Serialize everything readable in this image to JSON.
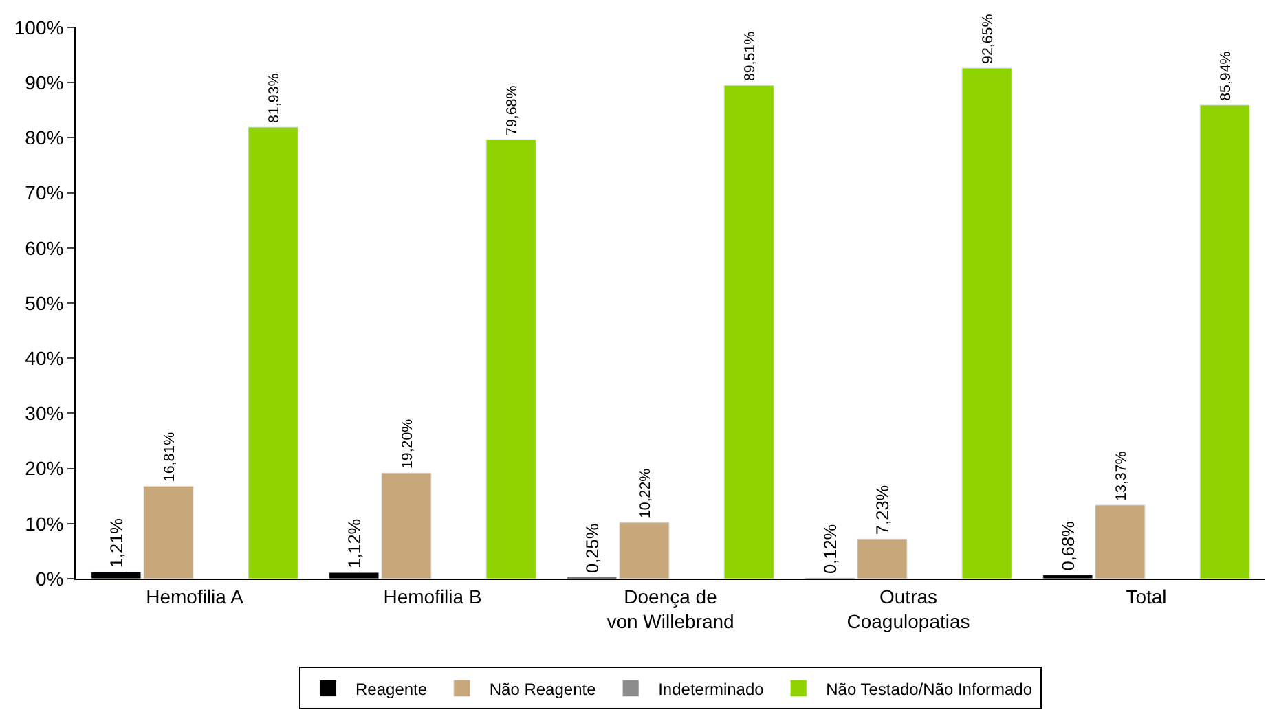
{
  "chart_data": {
    "type": "bar",
    "categories": [
      "Hemofilia A",
      "Hemofilia B",
      "Doença de\nvon Willebrand",
      "Outras\nCoagulopatias",
      "Total"
    ],
    "series": [
      {
        "name": "Reagente",
        "color": "#000000",
        "values": [
          1.21,
          1.12,
          0.25,
          0.12,
          0.68
        ],
        "value_labels": [
          "1,21%",
          "1,12%",
          "0,25%",
          "0,12%",
          "0,68%"
        ]
      },
      {
        "name": "Não Reagente",
        "color": "#c8a87a",
        "values": [
          16.81,
          19.2,
          10.22,
          7.23,
          13.37
        ],
        "value_labels": [
          "16,81%",
          "19,20%",
          "10,22%",
          "7,23%",
          "13,37%"
        ]
      },
      {
        "name": "Indeterminado",
        "color": "#8c8c8c",
        "values": [
          null,
          null,
          null,
          null,
          null
        ]
      },
      {
        "name": "Não Testado/Não Informado",
        "color": "#8fd400",
        "values": [
          81.93,
          79.68,
          89.51,
          92.65,
          85.94
        ],
        "value_labels": [
          "81,93%",
          "79,68%",
          "89,51%",
          "92,65%",
          "85,94%"
        ]
      }
    ],
    "ylim": [
      0,
      100
    ],
    "yticks": [
      {
        "value": 0,
        "label": "0%"
      },
      {
        "value": 10,
        "label": "10%"
      },
      {
        "value": 20,
        "label": "20%"
      },
      {
        "value": 30,
        "label": "30%"
      },
      {
        "value": 40,
        "label": "40%"
      },
      {
        "value": 50,
        "label": "50%"
      },
      {
        "value": 60,
        "label": "60%"
      },
      {
        "value": 70,
        "label": "70%"
      },
      {
        "value": 80,
        "label": "80%"
      },
      {
        "value": 90,
        "label": "90%"
      },
      {
        "value": 100,
        "label": "100%"
      }
    ],
    "legend": "bottom"
  }
}
